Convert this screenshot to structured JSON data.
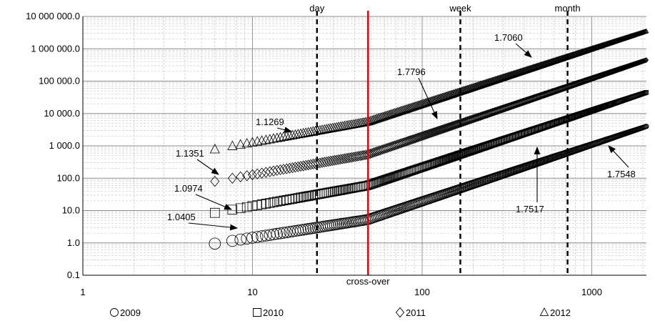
{
  "chart_data": {
    "type": "scatter",
    "x_scale": "log",
    "y_scale": "log",
    "xlim": [
      1,
      2100
    ],
    "ylim": [
      0.1,
      10000000
    ],
    "x_ticks": [
      "1",
      "10",
      "100",
      "1000"
    ],
    "y_ticks": [
      "0.1",
      "1.0",
      "10.0",
      "100.0",
      "1 000.0",
      "10 000.0",
      "100 000.0",
      "1 000 000.0",
      "10 000 000.0"
    ],
    "grid": true,
    "legend_position": "bottom",
    "series": [
      {
        "name": "2009",
        "marker": "circle",
        "start_x": 6,
        "end_x": 2100,
        "y_at_6": 0.95,
        "y_at_end": 4000,
        "power_law_exponent": 1.7548
      },
      {
        "name": "2010",
        "marker": "square",
        "start_x": 6,
        "end_x": 2100,
        "y_at_6": 8.5,
        "y_at_end": 45000,
        "power_law_exponent": 1.7517
      },
      {
        "name": "2011",
        "marker": "diamond",
        "start_x": 6,
        "end_x": 2100,
        "y_at_6": 80,
        "y_at_end": 450000,
        "power_law_exponent": 1.7796
      },
      {
        "name": "2012",
        "marker": "triangle",
        "start_x": 6,
        "end_x": 2100,
        "y_at_6": 780,
        "y_at_end": 3500000,
        "power_law_exponent": 1.706
      }
    ],
    "vertical_lines": [
      {
        "x": 24,
        "label": "day",
        "color": "#000000",
        "style": "dashed"
      },
      {
        "x": 48,
        "label": "cross-over",
        "color": "#e30613",
        "style": "solid"
      },
      {
        "x": 168,
        "label": "week",
        "color": "#000000",
        "style": "dashed"
      },
      {
        "x": 720,
        "label": "month",
        "color": "#000000",
        "style": "dashed"
      }
    ],
    "annotations": [
      {
        "text": "1.0405",
        "series": "2009"
      },
      {
        "text": "1.0974",
        "series": "2010"
      },
      {
        "text": "1.1351",
        "series": "2011"
      },
      {
        "text": "1.1269",
        "series": "2012"
      },
      {
        "text": "1.7548",
        "series": "2009"
      },
      {
        "text": "1.7517",
        "series": "2010"
      },
      {
        "text": "1.7796",
        "series": "2011"
      },
      {
        "text": "1.7060",
        "series": "2012"
      }
    ]
  }
}
